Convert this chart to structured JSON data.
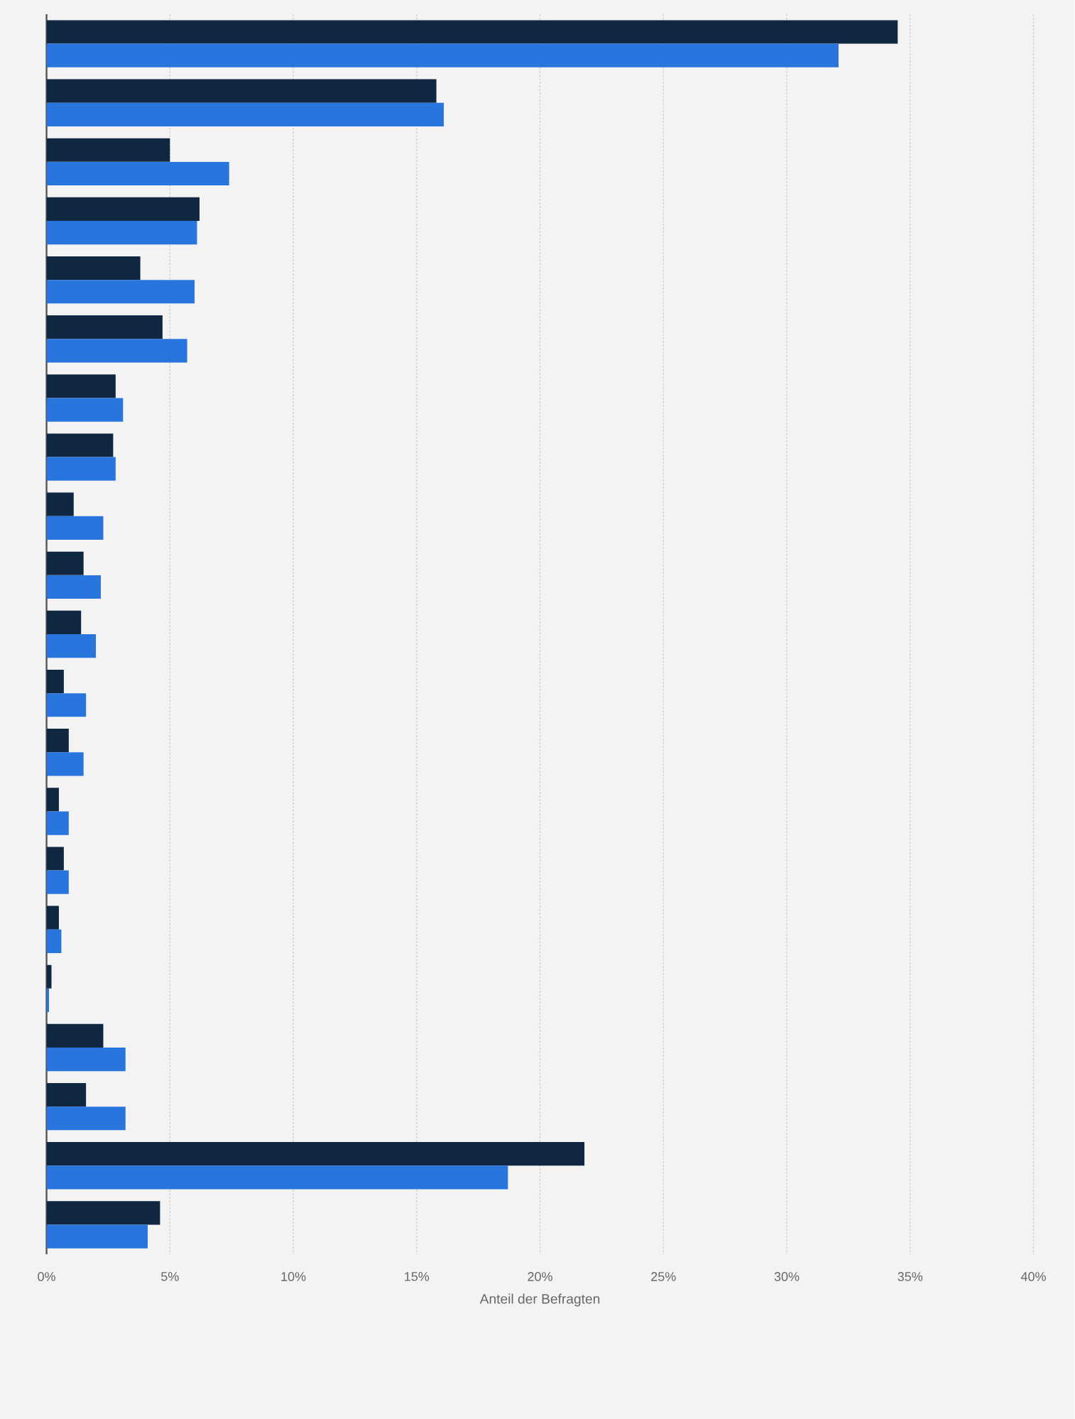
{
  "chart_data": {
    "type": "bar",
    "orientation": "horizontal",
    "xlabel": "Anteil der Befragten",
    "categories": [
      null,
      null,
      null,
      null,
      null,
      null,
      null,
      null,
      null,
      null,
      null,
      null,
      null,
      null,
      null,
      null,
      null,
      null,
      null,
      null,
      null
    ],
    "series": [
      {
        "color": "#0f2741",
        "values": [
          34.5,
          15.8,
          5.0,
          6.2,
          3.8,
          4.7,
          2.8,
          2.7,
          1.1,
          1.5,
          1.4,
          0.7,
          0.9,
          0.5,
          0.7,
          0.5,
          0.2,
          2.3,
          1.6,
          21.8,
          4.6
        ]
      },
      {
        "color": "#2876dd",
        "values": [
          32.1,
          16.1,
          7.4,
          6.1,
          6.0,
          5.7,
          3.1,
          2.8,
          2.3,
          2.2,
          2.0,
          1.6,
          1.5,
          0.9,
          0.9,
          0.6,
          0.1,
          3.2,
          3.2,
          18.7,
          4.1
        ]
      }
    ],
    "xlim": [
      0,
      40
    ],
    "xticks": [
      {
        "value": 0,
        "label": "0%"
      },
      {
        "value": 5,
        "label": "5%"
      },
      {
        "value": 10,
        "label": "10%"
      },
      {
        "value": 15,
        "label": "15%"
      },
      {
        "value": 20,
        "label": "20%"
      },
      {
        "value": 25,
        "label": "25%"
      },
      {
        "value": 30,
        "label": "30%"
      },
      {
        "value": 35,
        "label": "35%"
      },
      {
        "value": 40,
        "label": "40%"
      }
    ],
    "grid": "x"
  }
}
